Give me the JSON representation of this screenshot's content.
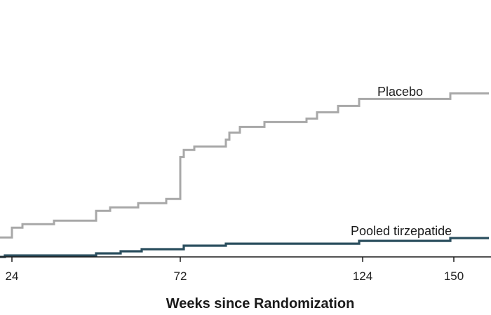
{
  "chart_data": {
    "type": "line",
    "step": true,
    "xlabel": "Weeks since Randomization",
    "ylabel": "",
    "x_ticks": [
      24,
      72,
      124,
      150
    ],
    "xlim": [
      20,
      160
    ],
    "ylim": [
      0,
      1
    ],
    "grid": false,
    "series": [
      {
        "name": "Placebo",
        "color": "#a8a8a8",
        "points": [
          [
            20,
            0.0855
          ],
          [
            24,
            0.0855
          ],
          [
            24,
            0.1286
          ],
          [
            27,
            0.1286
          ],
          [
            27,
            0.144
          ],
          [
            36,
            0.144
          ],
          [
            36,
            0.1594
          ],
          [
            48,
            0.1594
          ],
          [
            48,
            0.2025
          ],
          [
            52,
            0.2025
          ],
          [
            52,
            0.2179
          ],
          [
            60,
            0.2179
          ],
          [
            60,
            0.2363
          ],
          [
            68,
            0.2363
          ],
          [
            68,
            0.2548
          ],
          [
            72,
            0.2548
          ],
          [
            72,
            0.4389
          ],
          [
            73,
            0.4389
          ],
          [
            73,
            0.4697
          ],
          [
            76,
            0.4697
          ],
          [
            76,
            0.4851
          ],
          [
            85,
            0.4851
          ],
          [
            85,
            0.5158
          ],
          [
            86,
            0.5158
          ],
          [
            86,
            0.5466
          ],
          [
            89,
            0.5466
          ],
          [
            89,
            0.5712
          ],
          [
            96,
            0.5712
          ],
          [
            96,
            0.5927
          ],
          [
            108,
            0.5927
          ],
          [
            108,
            0.6081
          ],
          [
            111,
            0.6081
          ],
          [
            111,
            0.6358
          ],
          [
            117,
            0.6358
          ],
          [
            117,
            0.6634
          ],
          [
            123,
            0.6634
          ],
          [
            123,
            0.6941
          ],
          [
            149,
            0.6941
          ],
          [
            149,
            0.7187
          ],
          [
            160,
            0.7187
          ]
        ],
        "label": "Placebo"
      },
      {
        "name": "Pooled tirzepatide",
        "color": "#2a4e5e",
        "points": [
          [
            20,
            0.0
          ],
          [
            22,
            0.0
          ],
          [
            22,
            0.0061
          ],
          [
            48,
            0.0061
          ],
          [
            48,
            0.0153
          ],
          [
            55,
            0.0153
          ],
          [
            55,
            0.0245
          ],
          [
            61,
            0.0245
          ],
          [
            61,
            0.0338
          ],
          [
            73,
            0.0338
          ],
          [
            73,
            0.0491
          ],
          [
            85,
            0.0491
          ],
          [
            85,
            0.0583
          ],
          [
            123,
            0.0583
          ],
          [
            123,
            0.0706
          ],
          [
            149,
            0.0706
          ],
          [
            149,
            0.0829
          ],
          [
            160,
            0.0829
          ]
        ],
        "label": "Pooled tirzepatide"
      }
    ]
  }
}
